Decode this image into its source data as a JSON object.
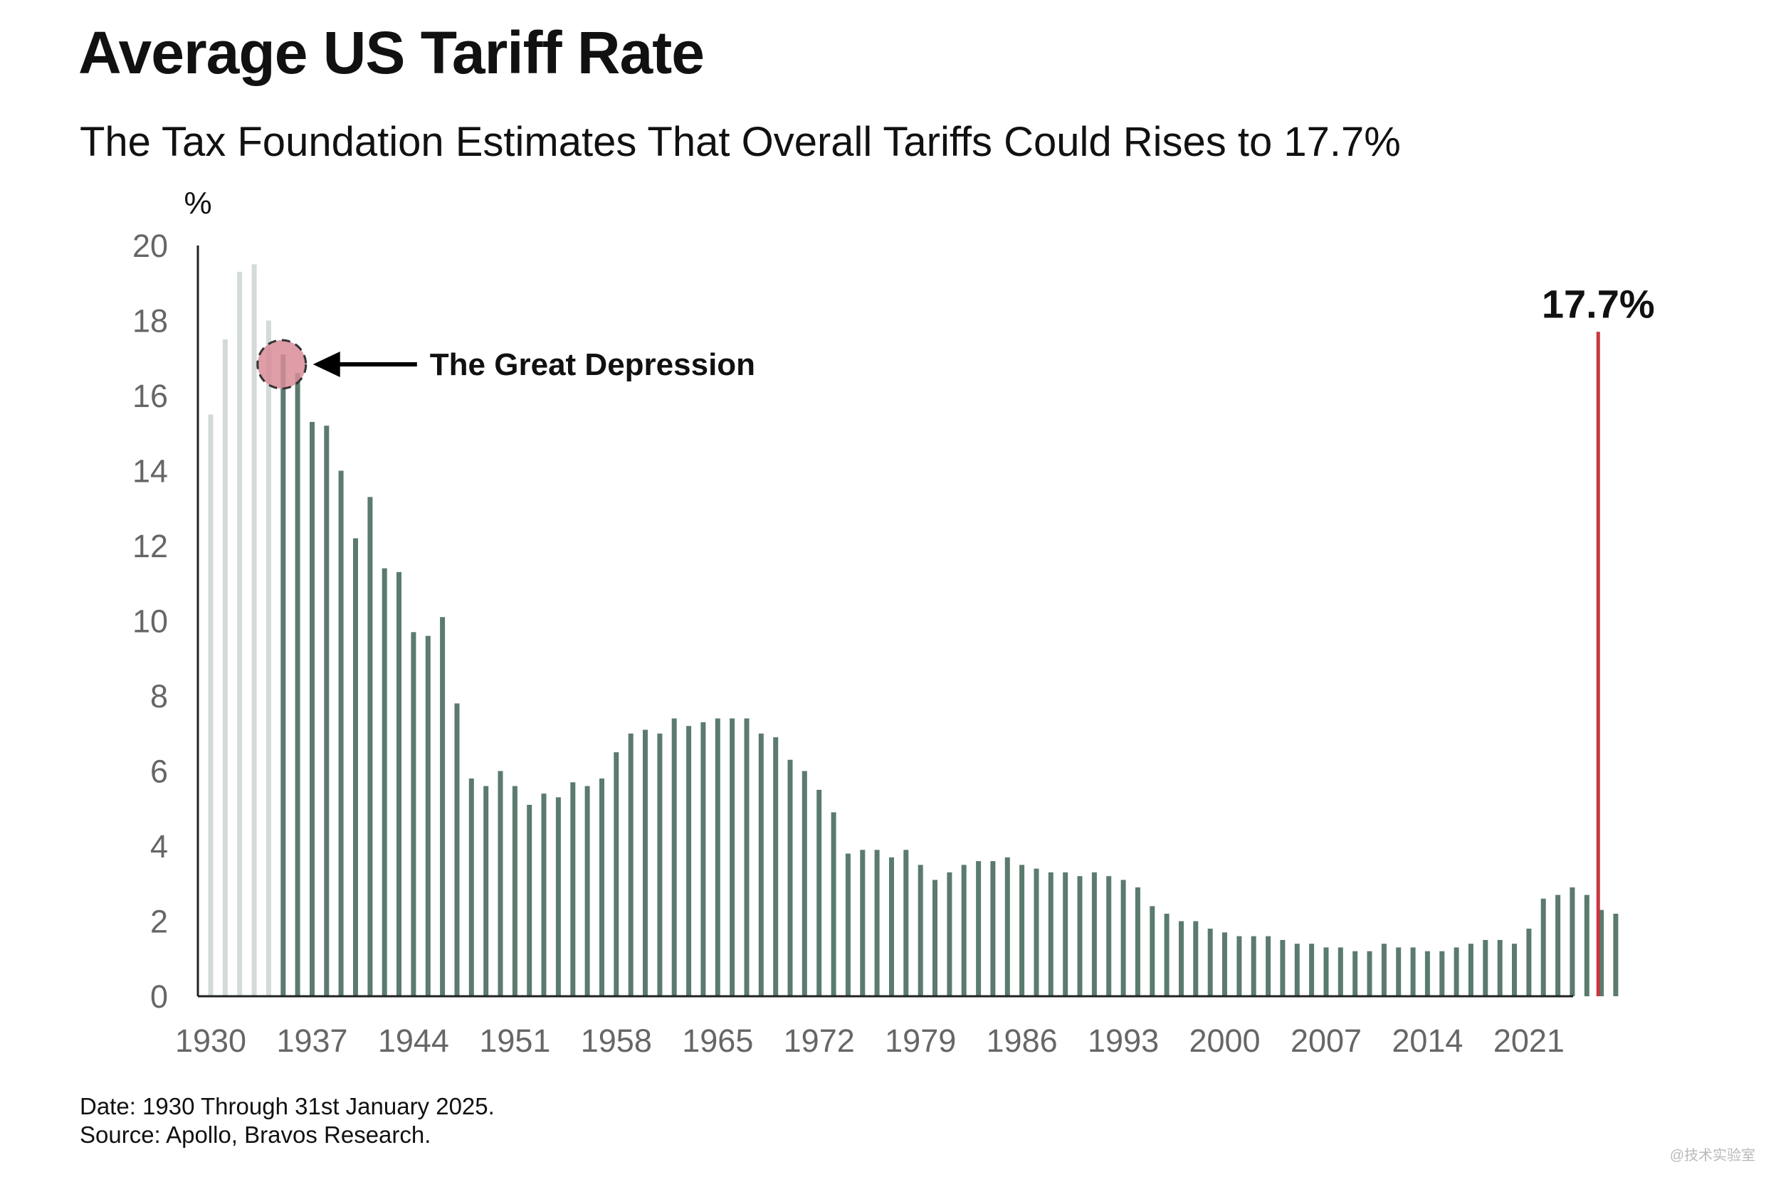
{
  "chart_data": {
    "type": "bar",
    "title": "Average US Tariff Rate",
    "subtitle": "The Tax Foundation Estimates That Overall Tariffs Could Rises to 17.7%",
    "xlabel": "",
    "ylabel": "%",
    "ylim": [
      0,
      20
    ],
    "yticks": [
      "0",
      "2",
      "4",
      "6",
      "8",
      "10",
      "12",
      "14",
      "16",
      "18",
      "20"
    ],
    "xticks": [
      "1930",
      "1937",
      "1944",
      "1951",
      "1958",
      "1965",
      "1972",
      "1979",
      "1986",
      "1993",
      "2000",
      "2007",
      "2014",
      "2021"
    ],
    "x_start_year": 1930,
    "series": [
      {
        "name": "Average US tariff rate (Great Depression years, faded)",
        "color": "#d2dbd6",
        "start_year": 1930,
        "values": [
          15.5,
          17.5,
          19.3,
          19.5,
          18.0
        ]
      },
      {
        "name": "Average US tariff rate",
        "color": "#5a7b6d",
        "start_year": 1935,
        "values": [
          17.1,
          16.6,
          15.3,
          15.2,
          14.0,
          12.2,
          13.3,
          11.4,
          11.3,
          9.7,
          9.6,
          10.1,
          7.8,
          5.8,
          5.6,
          6.0,
          5.6,
          5.1,
          5.4,
          5.3,
          5.7,
          5.6,
          5.8,
          6.5,
          7.0,
          7.1,
          7.0,
          7.4,
          7.2,
          7.3,
          7.4,
          7.4,
          7.4,
          7.0,
          6.9,
          6.3,
          6.0,
          5.5,
          4.9,
          3.8,
          3.9,
          3.9,
          3.7,
          3.9,
          3.5,
          3.1,
          3.3,
          3.5,
          3.6,
          3.6,
          3.7,
          3.5,
          3.4,
          3.3,
          3.3,
          3.2,
          3.3,
          3.2,
          3.1,
          2.9,
          2.4,
          2.2,
          2.0,
          2.0,
          1.8,
          1.7,
          1.6,
          1.6,
          1.6,
          1.5,
          1.4,
          1.4,
          1.3,
          1.3,
          1.2,
          1.2,
          1.4,
          1.3,
          1.3,
          1.2,
          1.2,
          1.3,
          1.4,
          1.5,
          1.5,
          1.4,
          1.8,
          2.6,
          2.7,
          2.9,
          2.7,
          2.3,
          2.2
        ]
      }
    ],
    "projection": {
      "year": 2025,
      "value": 17.7,
      "label": "17.7%",
      "color": "#c8373d"
    },
    "annotations": [
      {
        "text": "The Great Depression",
        "year": 1935,
        "value": 17.1
      }
    ]
  },
  "footnotes": {
    "date": "Date: 1930 Through 31st January 2025.",
    "source": "Source: Apollo, Bravos Research."
  },
  "watermark": "@技术实验室"
}
